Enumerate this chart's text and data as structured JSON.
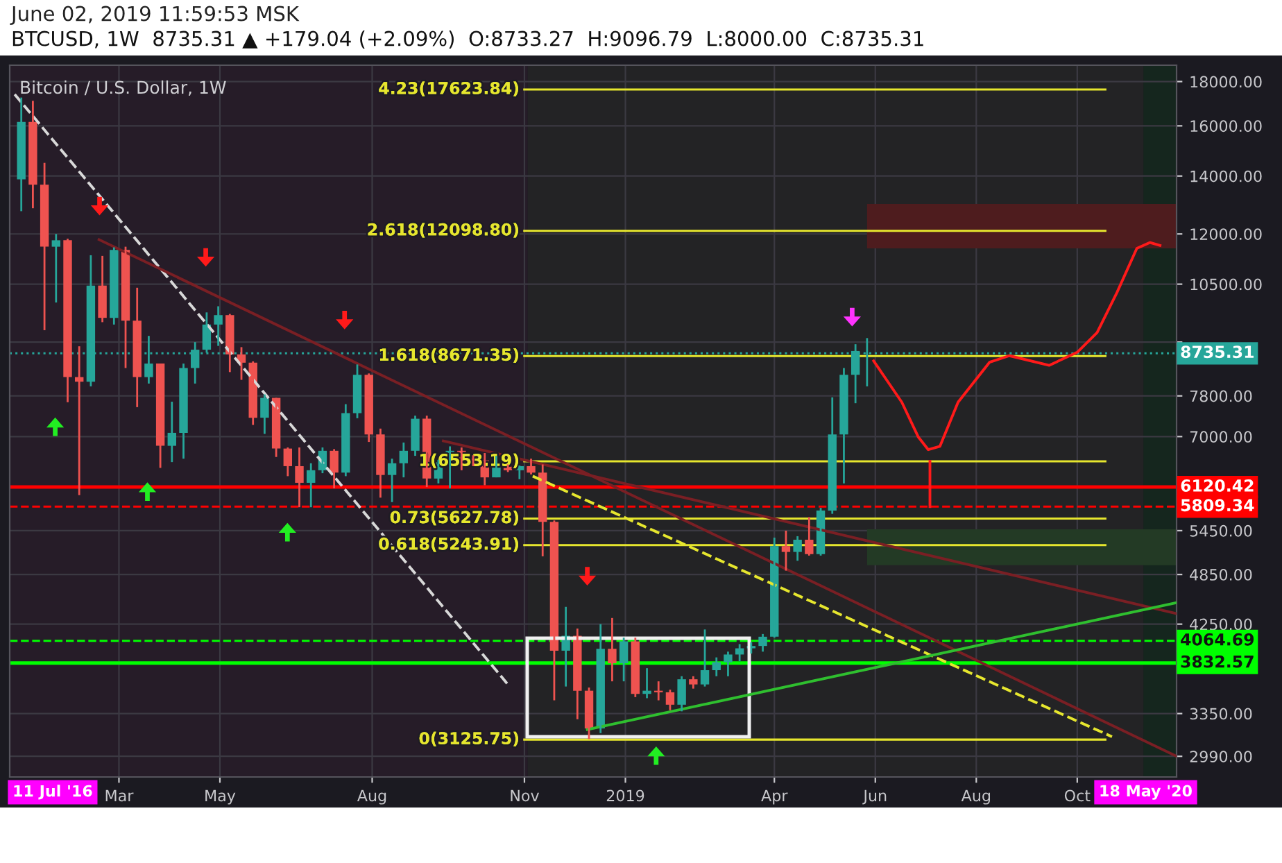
{
  "chart_data": {
    "type": "candlestick",
    "title": "June 02, 2019 11:59:53 MSK",
    "subtitle": "BTCUSD, 1W  8735.31 ▲ +179.04 (+2.09%)  O:8733.27  H:9096.79  L:8000.00  C:8735.31",
    "annotations": [
      "Bitcoin / U.S. Dollar, 1W",
      "11 Jul '16",
      "18 May '20"
    ],
    "x": [
      "2018-01-01",
      "2018-01-08",
      "2018-01-15",
      "2018-01-22",
      "2018-01-29",
      "2018-02-05",
      "2018-02-12",
      "2018-02-19",
      "2018-02-26",
      "2018-03-05",
      "2018-03-12",
      "2018-03-19",
      "2018-03-26",
      "2018-04-02",
      "2018-04-09",
      "2018-04-16",
      "2018-04-23",
      "2018-04-30",
      "2018-05-07",
      "2018-05-14",
      "2018-05-21",
      "2018-05-28",
      "2018-06-04",
      "2018-06-11",
      "2018-06-18",
      "2018-06-25",
      "2018-07-02",
      "2018-07-09",
      "2018-07-16",
      "2018-07-23",
      "2018-07-30",
      "2018-08-06",
      "2018-08-13",
      "2018-08-20",
      "2018-08-27",
      "2018-09-03",
      "2018-09-10",
      "2018-09-17",
      "2018-09-24",
      "2018-10-01",
      "2018-10-08",
      "2018-10-15",
      "2018-10-22",
      "2018-10-29",
      "2018-11-05",
      "2018-11-12",
      "2018-11-19",
      "2018-11-26",
      "2018-12-03",
      "2018-12-10",
      "2018-12-17",
      "2018-12-24",
      "2018-12-31",
      "2019-01-07",
      "2019-01-14",
      "2019-01-21",
      "2019-01-28",
      "2019-02-04",
      "2019-02-11",
      "2019-02-18",
      "2019-02-25",
      "2019-03-04",
      "2019-03-11",
      "2019-03-18",
      "2019-03-25",
      "2019-04-01",
      "2019-04-08",
      "2019-04-15",
      "2019-04-22",
      "2019-04-29",
      "2019-05-06",
      "2019-05-13",
      "2019-05-20",
      "2019-05-27"
    ],
    "ohlc": [
      [
        13880,
        17250,
        12750,
        16170
      ],
      [
        16170,
        17100,
        12850,
        13680
      ],
      [
        13680,
        14500,
        9290,
        11600
      ],
      [
        11600,
        12000,
        10000,
        11800
      ],
      [
        11800,
        11850,
        7670,
        8200
      ],
      [
        8200,
        8900,
        5990,
        8100
      ],
      [
        8100,
        11340,
        8000,
        10460
      ],
      [
        10460,
        11320,
        9490,
        9600
      ],
      [
        9600,
        11580,
        9430,
        11500
      ],
      [
        11500,
        11600,
        8400,
        9530
      ],
      [
        9530,
        10400,
        7570,
        8200
      ],
      [
        8200,
        9150,
        8060,
        8500
      ],
      [
        8500,
        8500,
        6440,
        6830
      ],
      [
        6830,
        7680,
        6540,
        7070
      ],
      [
        7070,
        8500,
        6600,
        8400
      ],
      [
        8400,
        9000,
        8060,
        8820
      ],
      [
        8820,
        9740,
        8750,
        9430
      ],
      [
        9430,
        9900,
        8910,
        9670
      ],
      [
        9670,
        9700,
        8310,
        8710
      ],
      [
        8710,
        8880,
        8140,
        8520
      ],
      [
        8520,
        8550,
        7220,
        7360
      ],
      [
        7360,
        7830,
        7050,
        7760
      ],
      [
        7760,
        7760,
        6630,
        6780
      ],
      [
        6780,
        6800,
        6300,
        6470
      ],
      [
        6470,
        6800,
        5800,
        6190
      ],
      [
        6190,
        6520,
        5800,
        6400
      ],
      [
        6400,
        6800,
        6350,
        6740
      ],
      [
        6740,
        6770,
        6100,
        6360
      ],
      [
        6360,
        7630,
        6300,
        7450
      ],
      [
        7450,
        8480,
        7350,
        8250
      ],
      [
        8250,
        8280,
        6900,
        7040
      ],
      [
        7040,
        7150,
        5950,
        6320
      ],
      [
        6320,
        6600,
        5880,
        6520
      ],
      [
        6520,
        6890,
        6280,
        6740
      ],
      [
        6740,
        7400,
        6650,
        7340
      ],
      [
        7340,
        7400,
        6120,
        6260
      ],
      [
        6260,
        6580,
        6180,
        6540
      ],
      [
        6540,
        6820,
        6100,
        6740
      ],
      [
        6740,
        6800,
        6400,
        6600
      ],
      [
        6600,
        6660,
        6470,
        6570
      ],
      [
        6570,
        6700,
        6150,
        6280
      ],
      [
        6280,
        6650,
        6280,
        6460
      ],
      [
        6460,
        6500,
        6370,
        6400
      ],
      [
        6400,
        6480,
        6250,
        6470
      ],
      [
        6470,
        6600,
        6330,
        6360
      ],
      [
        6360,
        6500,
        5090,
        5580
      ],
      [
        5580,
        5600,
        3470,
        3960
      ],
      [
        3960,
        4450,
        3600,
        4120
      ],
      [
        4120,
        4200,
        3300,
        3560
      ],
      [
        3560,
        3590,
        3130,
        3220
      ],
      [
        3220,
        4250,
        3180,
        3980
      ],
      [
        3980,
        4320,
        3650,
        3830
      ],
      [
        3830,
        4100,
        3650,
        4060
      ],
      [
        4060,
        4100,
        3500,
        3530
      ],
      [
        3530,
        3780,
        3490,
        3560
      ],
      [
        3560,
        3650,
        3470,
        3545
      ],
      [
        3545,
        3570,
        3380,
        3430
      ],
      [
        3430,
        3700,
        3370,
        3670
      ],
      [
        3670,
        3700,
        3580,
        3620
      ],
      [
        3620,
        4190,
        3600,
        3760
      ],
      [
        3760,
        3890,
        3700,
        3840
      ],
      [
        3840,
        3950,
        3700,
        3920
      ],
      [
        3920,
        4030,
        3850,
        3985
      ],
      [
        3985,
        4050,
        3930,
        4010
      ],
      [
        4010,
        4140,
        3950,
        4110
      ],
      [
        4110,
        5350,
        4100,
        5230
      ],
      [
        5230,
        5450,
        4900,
        5150
      ],
      [
        5150,
        5370,
        5030,
        5320
      ],
      [
        5320,
        5650,
        5100,
        5120
      ],
      [
        5120,
        5790,
        5100,
        5750
      ],
      [
        5750,
        7770,
        5700,
        7040
      ],
      [
        7040,
        8400,
        6180,
        8250
      ],
      [
        8250,
        8950,
        7650,
        8790
      ],
      [
        8733.27,
        9096.79,
        8000,
        8735.31
      ]
    ],
    "colors": [
      "#26a69a",
      "#ef5350",
      "#ef5350",
      "#26a69a",
      "#ef5350",
      "#ef5350",
      "#26a69a",
      "#ef5350",
      "#26a69a",
      "#ef5350",
      "#ef5350",
      "#26a69a",
      "#ef5350",
      "#26a69a",
      "#26a69a",
      "#26a69a",
      "#26a69a",
      "#26a69a",
      "#ef5350",
      "#ef5350",
      "#ef5350",
      "#26a69a",
      "#ef5350",
      "#ef5350",
      "#ef5350",
      "#26a69a",
      "#26a69a",
      "#ef5350",
      "#26a69a",
      "#26a69a",
      "#ef5350",
      "#ef5350",
      "#26a69a",
      "#26a69a",
      "#26a69a",
      "#ef5350",
      "#26a69a",
      "#26a69a",
      "#ef5350",
      "#ef5350",
      "#ef5350",
      "#26a69a",
      "#ef5350",
      "#26a69a",
      "#ef5350",
      "#ef5350",
      "#ef5350",
      "#26a69a",
      "#ef5350",
      "#ef5350",
      "#26a69a",
      "#ef5350",
      "#26a69a",
      "#ef5350",
      "#26a69a",
      "#ef5350",
      "#ef5350",
      "#26a69a",
      "#ef5350",
      "#26a69a",
      "#26a69a",
      "#26a69a",
      "#26a69a",
      "#26a69a",
      "#26a69a",
      "#26a69a",
      "#ef5350",
      "#26a69a",
      "#ef5350",
      "#26a69a",
      "#26a69a",
      "#26a69a",
      "#26a69a",
      "#26a69a"
    ],
    "series": [
      {
        "type": "line",
        "x": [
          "2017-12-28",
          "2018-10-22"
        ],
        "values": [
          17400,
          3620
        ],
        "color": "#d8d8d8",
        "line_style": "dashed"
      },
      {
        "type": "line",
        "x": [
          "2018-02-17",
          "2019-11-30"
        ],
        "values": [
          11820,
          2990
        ],
        "color": "#7a1f24",
        "line_style": "solid"
      },
      {
        "type": "line",
        "x": [
          "2018-09-13",
          "2019-11-30"
        ],
        "values": [
          6920,
          4370
        ],
        "color": "#7a1f24",
        "line_style": "solid"
      },
      {
        "type": "line",
        "x": [
          "2018-11-06",
          "2019-10-22"
        ],
        "values": [
          6300,
          3150
        ],
        "color": "#e6e62e",
        "line_style": "dashed"
      },
      {
        "type": "line",
        "x": [
          "2018-12-09",
          "2019-11-30"
        ],
        "values": [
          3210,
          4500
        ],
        "color": "#2fbf2f",
        "line_style": "solid"
      },
      {
        "type": "line",
        "x": [
          "2019-05-31",
          "2019-06-17",
          "2019-06-27",
          "2019-07-03",
          "2019-07-10",
          "2019-07-21",
          "2019-08-09",
          "2019-08-21",
          "2019-09-14",
          "2019-10-01",
          "2019-10-13",
          "2019-10-25",
          "2019-11-06",
          "2019-11-14",
          "2019-11-20"
        ],
        "values": [
          8560,
          7670,
          6990,
          6760,
          6820,
          7670,
          8530,
          8680,
          8460,
          8760,
          9230,
          10270,
          11550,
          11730,
          11640
        ],
        "color": "#ff1a1a",
        "line_style": "solid"
      },
      {
        "type": "line",
        "x": [
          "2019-07-04",
          "2019-07-04"
        ],
        "values": [
          6553,
          5810
        ],
        "color": "#ff1a1a",
        "line_style": "solid"
      }
    ],
    "ref_lines": [
      {
        "axis": "y",
        "value": 17623.84,
        "label": "4.23(17623.84)",
        "color": "#e6e62e"
      },
      {
        "axis": "y",
        "value": 12098.8,
        "label": "2.618(12098.80)",
        "color": "#e6e62e"
      },
      {
        "axis": "y",
        "value": 8671.35,
        "label": "1.618(8671.35)",
        "color": "#e6e62e"
      },
      {
        "axis": "y",
        "value": 6553.19,
        "label": "1(6553.19)",
        "color": "#e6e62e"
      },
      {
        "axis": "y",
        "value": 5627.78,
        "label": "0.73(5627.78)",
        "color": "#e6e62e"
      },
      {
        "axis": "y",
        "value": 5243.91,
        "label": "0.618(5243.91)",
        "color": "#e6e62e"
      },
      {
        "axis": "y",
        "value": 3125.75,
        "label": "0(3125.75)",
        "color": "#e6e62e"
      },
      {
        "axis": "y",
        "value": 8735.31,
        "label": "8735.31",
        "color": "#26a69a",
        "line_style": "dotted"
      },
      {
        "axis": "y",
        "value": 6120.42,
        "label": "6120.42",
        "color": "#ff0000",
        "line_style": "solid"
      },
      {
        "axis": "y",
        "value": 5809.34,
        "label": "5809.34",
        "color": "#ff0000",
        "line_style": "dashed"
      },
      {
        "axis": "y",
        "value": 4064.69,
        "label": "4064.69",
        "color": "#00ff00",
        "line_style": "dashed"
      },
      {
        "axis": "y",
        "value": 3832.57,
        "label": "3832.57",
        "color": "#00ff00",
        "line_style": "solid"
      }
    ],
    "bands": [
      {
        "axis": "x",
        "from": "2017-12-25",
        "to": "2018-11-03",
        "color": "#261c28"
      },
      {
        "axis": "x",
        "from": "2018-11-03",
        "to": "2019-11-10",
        "color": "#232325"
      },
      {
        "axis": "x",
        "from": "2019-11-10",
        "to": "2019-11-30",
        "color": "#15261e"
      },
      {
        "axis": "y",
        "from": 11550,
        "to": 13000,
        "color": "#4e1c1e"
      },
      {
        "axis": "y",
        "from": 4970,
        "to": 5470,
        "color": "#233a25"
      }
    ],
    "log": true,
    "xlim": [
      "2017-12-25",
      "2019-11-30"
    ],
    "xticks": [
      {
        "value": "2018-03-01",
        "label": "Mar"
      },
      {
        "value": "2018-05-01",
        "label": "May"
      },
      {
        "value": "2018-08-01",
        "label": "Aug"
      },
      {
        "value": "2018-11-01",
        "label": "Nov"
      },
      {
        "value": "2019-01-01",
        "label": "2019"
      },
      {
        "value": "2019-04-01",
        "label": "Apr"
      },
      {
        "value": "2019-06-01",
        "label": "Jun"
      },
      {
        "value": "2019-08-01",
        "label": "Aug"
      },
      {
        "value": "2019-10-01",
        "label": "Oct"
      }
    ],
    "ylim": [
      2830,
      18800
    ],
    "yticks": [
      {
        "value": 18000,
        "label": "18000.00"
      },
      {
        "value": 16000,
        "label": "16000.00"
      },
      {
        "value": 14000,
        "label": "14000.00"
      },
      {
        "value": 12000,
        "label": "12000.00"
      },
      {
        "value": 10500,
        "label": "10500.00"
      },
      {
        "value": 9000,
        "label": null
      },
      {
        "value": 7800,
        "label": "7800.00"
      },
      {
        "value": 7000,
        "label": "7000.00"
      },
      {
        "value": 5450,
        "label": "5450.00"
      },
      {
        "value": 4850,
        "label": "4850.00"
      },
      {
        "value": 4250,
        "label": "4250.00"
      },
      {
        "value": 3350,
        "label": "3350.00"
      },
      {
        "value": 2990,
        "label": "2990.00"
      }
    ],
    "grid": true
  }
}
